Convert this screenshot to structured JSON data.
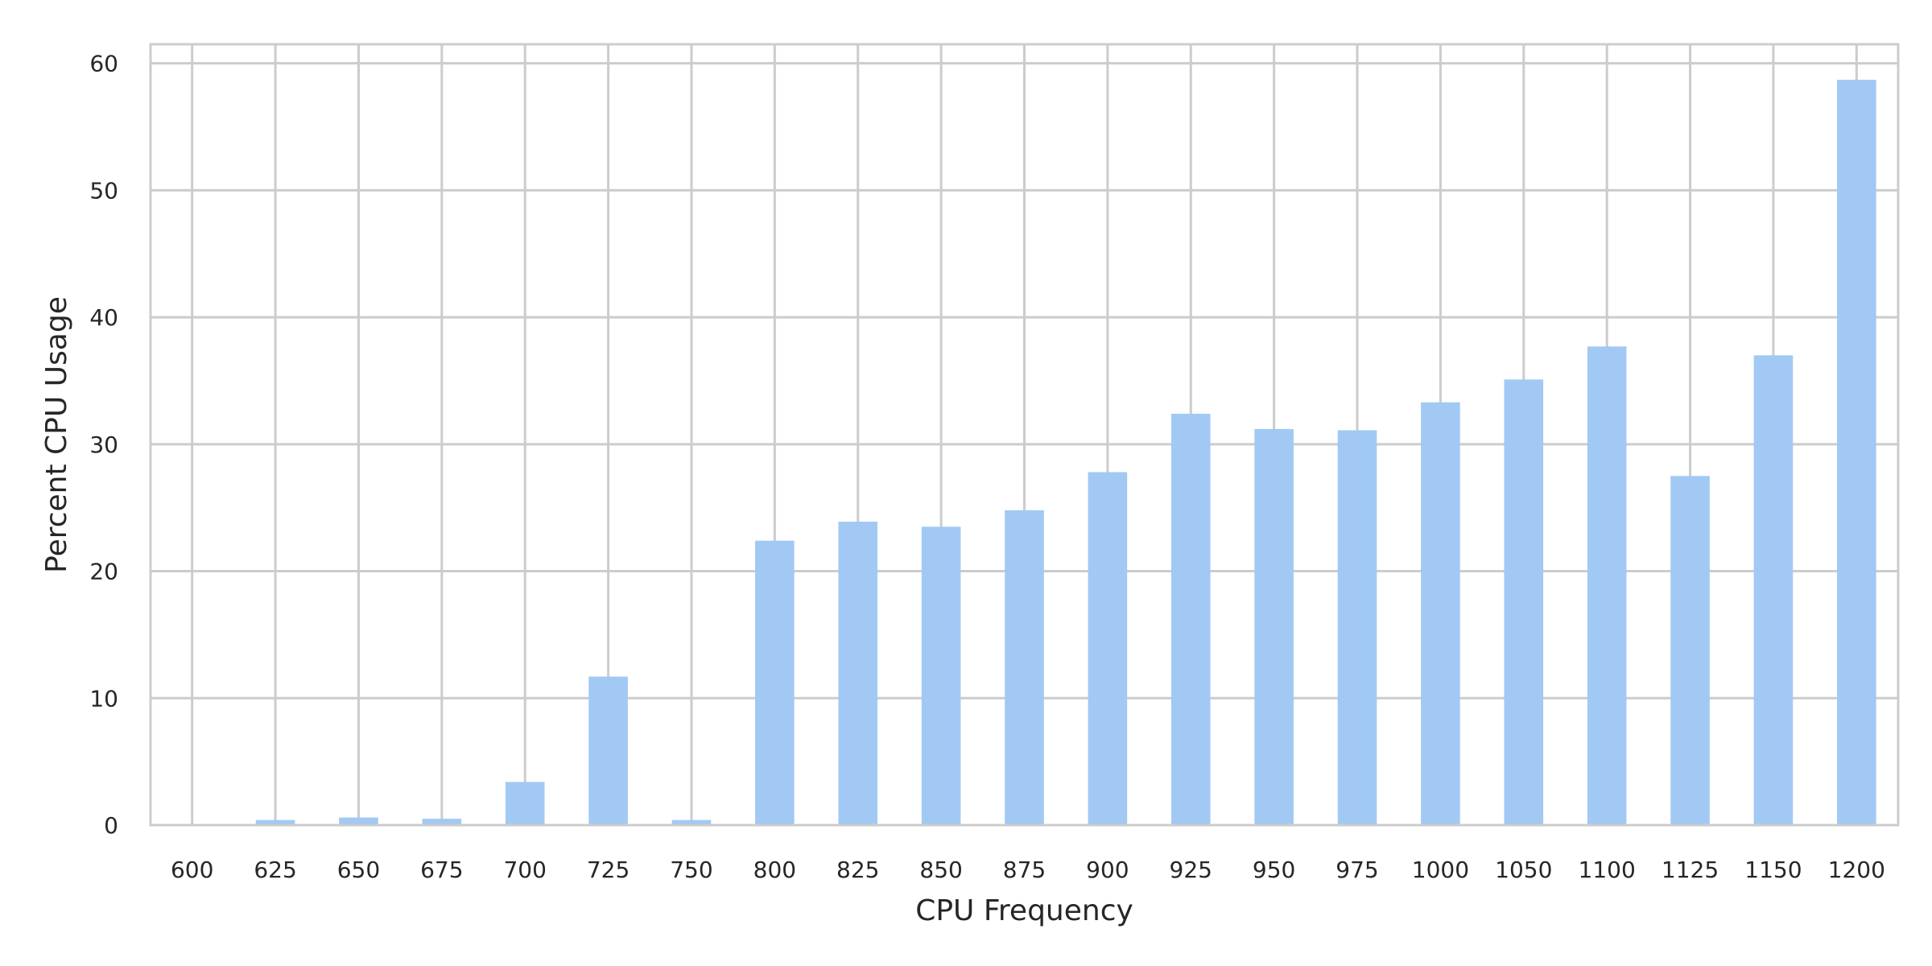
{
  "chart_data": {
    "type": "bar",
    "title": "",
    "xlabel": "CPU Frequency",
    "ylabel": "Percent CPU Usage",
    "categories": [
      "600",
      "625",
      "650",
      "675",
      "700",
      "725",
      "750",
      "800",
      "825",
      "850",
      "875",
      "900",
      "925",
      "950",
      "975",
      "1000",
      "1050",
      "1100",
      "1125",
      "1150",
      "1200"
    ],
    "values": [
      0.0,
      0.4,
      0.6,
      0.5,
      3.4,
      11.7,
      0.4,
      22.4,
      23.9,
      23.5,
      24.8,
      27.8,
      32.4,
      31.2,
      31.1,
      33.3,
      35.1,
      37.7,
      27.5,
      37.0,
      58.7
    ],
    "yticks": [
      0,
      10,
      20,
      30,
      40,
      50,
      60
    ],
    "ylim": [
      0,
      61.5
    ],
    "grid": true,
    "colors": {
      "bar": "#a1c9f4",
      "grid": "#cccccc",
      "frame": "#cccccc",
      "text": "#262626"
    }
  }
}
